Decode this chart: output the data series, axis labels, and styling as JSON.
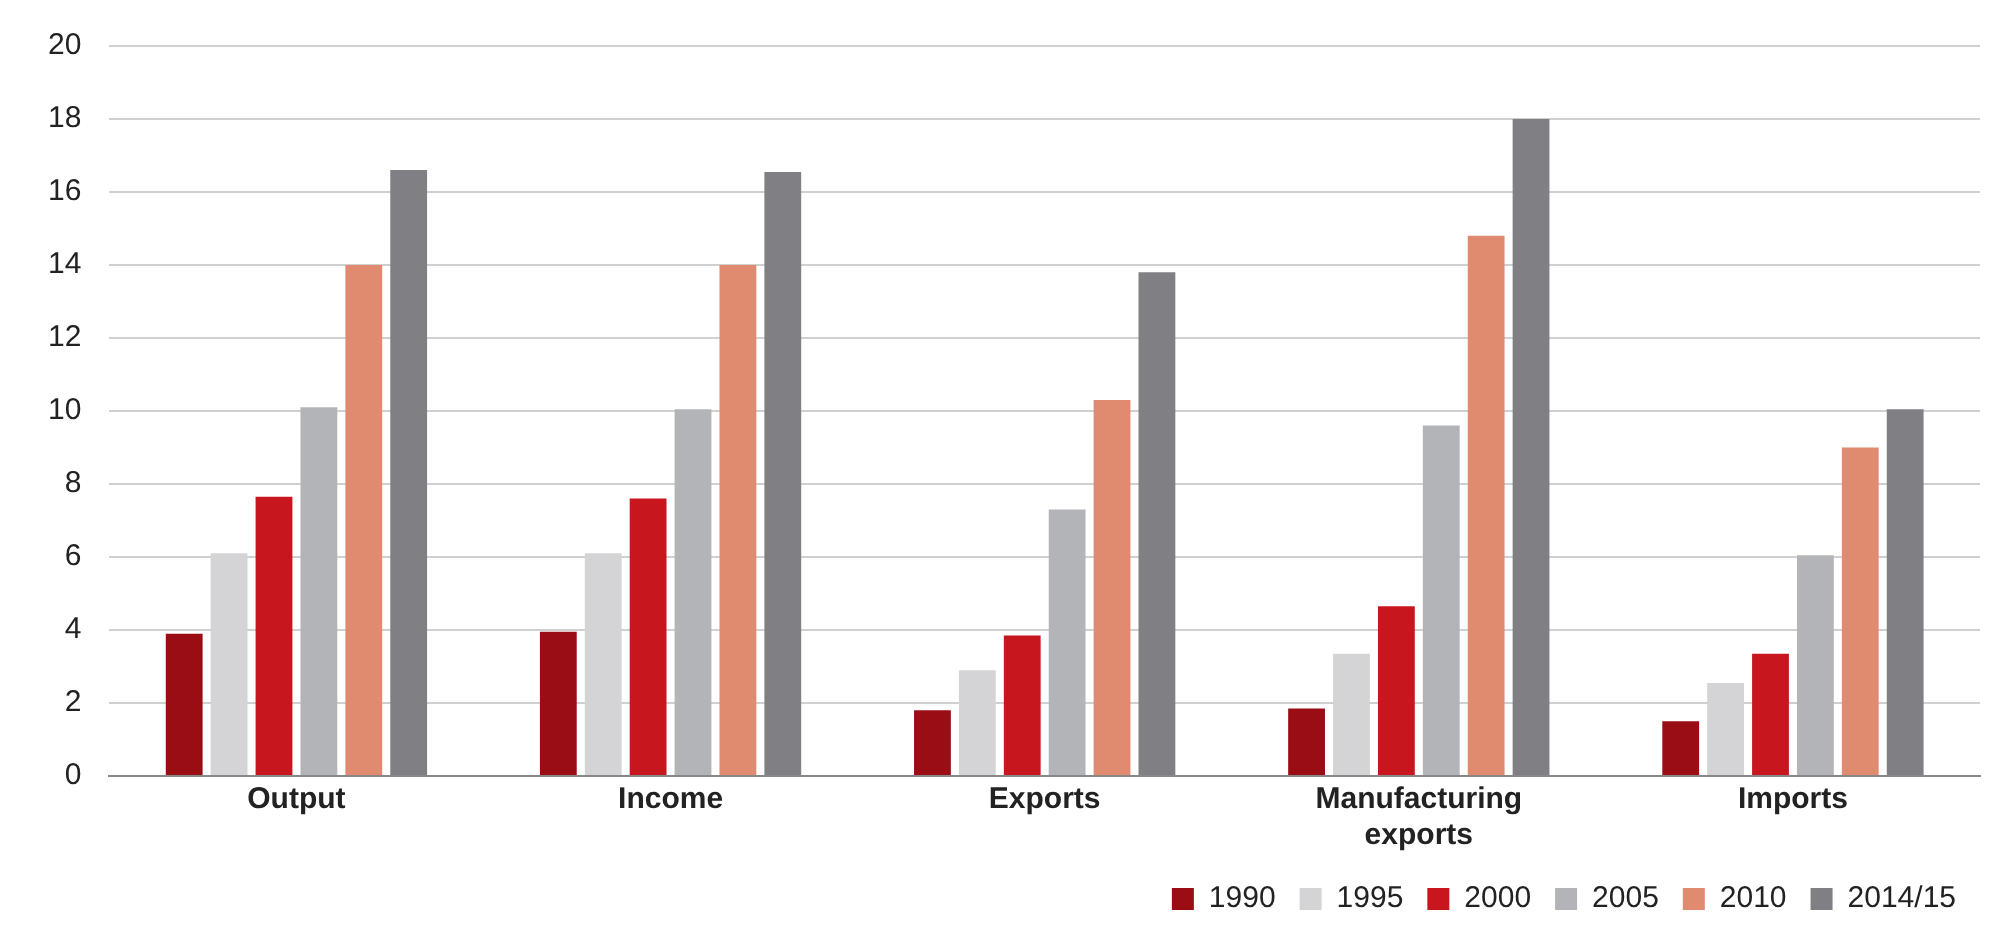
{
  "chart_data": {
    "type": "bar",
    "categories": [
      "Output",
      "Income",
      "Exports",
      "Manufacturing exports",
      "Imports"
    ],
    "series": [
      {
        "name": "1990",
        "color": "#9b0d14",
        "values": [
          3.9,
          3.95,
          1.8,
          1.85,
          1.5
        ]
      },
      {
        "name": "1995",
        "color": "#d4d4d6",
        "values": [
          6.1,
          6.1,
          2.9,
          3.35,
          2.55
        ]
      },
      {
        "name": "2000",
        "color": "#c8161e",
        "values": [
          7.65,
          7.6,
          3.85,
          4.65,
          3.35
        ]
      },
      {
        "name": "2005",
        "color": "#b2b4b7",
        "values": [
          10.1,
          10.05,
          7.3,
          9.6,
          6.05
        ]
      },
      {
        "name": "2010",
        "color": "#e08a70",
        "values": [
          14,
          14,
          10.3,
          14.8,
          9
        ]
      },
      {
        "name": "2014/15",
        "color": "#808084",
        "values": [
          16.6,
          16.55,
          13.8,
          18,
          10.05
        ]
      }
    ],
    "ylim": [
      0,
      20
    ],
    "yticks": [
      0,
      2,
      4,
      6,
      8,
      10,
      12,
      14,
      16,
      18,
      20
    ],
    "grid": "y",
    "legend": "bottom right"
  }
}
